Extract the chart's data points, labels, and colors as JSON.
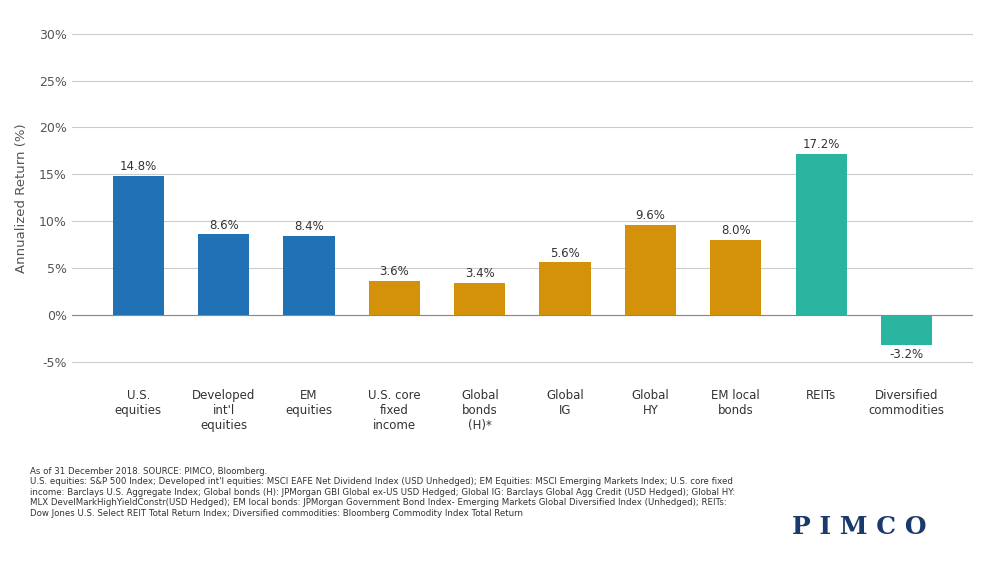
{
  "categories": [
    "U.S.\nequities",
    "Developed\nint'l\nequities",
    "EM\nequities",
    "U.S. core\nfixed\nincome",
    "Global\nbonds\n(H)*",
    "Global\nIG",
    "Global\nHY",
    "EM local\nbonds",
    "REITs",
    "Diversified\ncommodities"
  ],
  "values": [
    14.8,
    8.6,
    8.4,
    3.6,
    3.4,
    5.6,
    9.6,
    8.0,
    17.2,
    -3.2
  ],
  "bar_colors": [
    "#2171b5",
    "#2171b5",
    "#2171b5",
    "#d4920a",
    "#d4920a",
    "#d4920a",
    "#d4920a",
    "#d4920a",
    "#2ab5a0",
    "#2ab5a0"
  ],
  "value_labels": [
    "14.8%",
    "8.6%",
    "8.4%",
    "3.6%",
    "3.4%",
    "5.6%",
    "9.6%",
    "8.0%",
    "17.2%",
    "-3.2%"
  ],
  "ylabel": "Annualized Return (%)",
  "ylim": [
    -7,
    32
  ],
  "yticks": [
    -5,
    0,
    5,
    10,
    15,
    20,
    25,
    30
  ],
  "ytick_labels": [
    "-5%",
    "0%",
    "5%",
    "10%",
    "15%",
    "20%",
    "25%",
    "30%"
  ],
  "background_color": "#ffffff",
  "grid_color": "#cccccc",
  "footnote_line1": "As of 31 December 2018. SOURCE: PIMCO, Bloomberg.",
  "footnote_line2": "U.S. equities: S&P 500 Index; Developed int'l equities: MSCI EAFE Net Dividend Index (USD Unhedged); EM Equities: MSCI Emerging Markets Index; U.S. core fixed",
  "footnote_line3": "income: Barclays U.S. Aggregate Index; Global bonds (H): JPMorgan GBI Global ex-US USD Hedged; Global IG: Barclays Global Agg Credit (USD Hedged); Global HY:",
  "footnote_line4": "MLX DevelMarkHighYieldConstr(USD Hedged); EM local bonds: JPMorgan Government Bond Index- Emerging Markets Global Diversified Index (Unhedged); REITs:",
  "footnote_line5": "Dow Jones U.S. Select REIT Total Return Index; Diversified commodities: Bloomberg Commodity Index Total Return",
  "pimco_text": "P I M C O",
  "pimco_color": "#1a3a6b"
}
